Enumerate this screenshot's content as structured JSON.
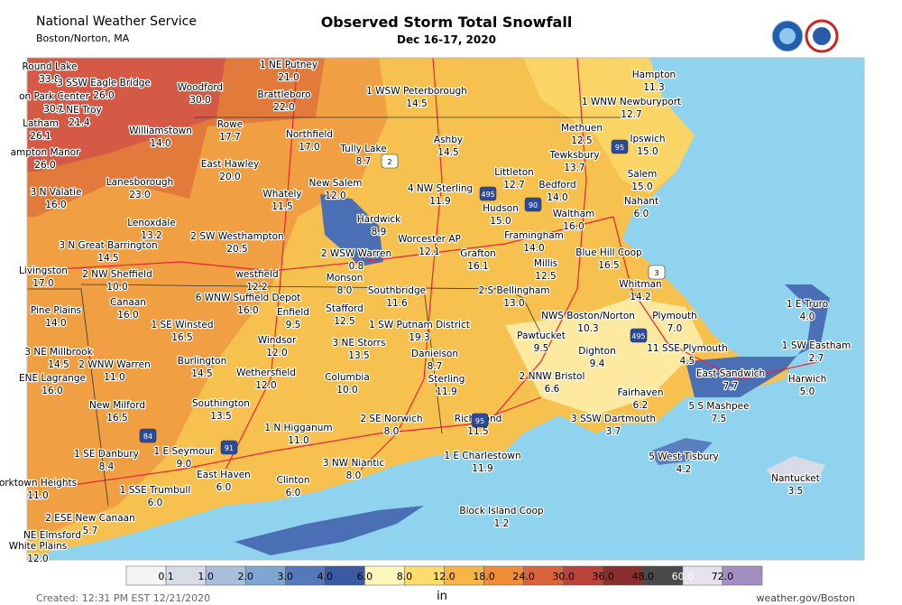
{
  "header": {
    "office": "National Weather Service",
    "location": "Boston/Norton, MA",
    "title": "Observed Storm Total Snowfall",
    "subtitle": "Dec 16-17, 2020"
  },
  "stations": [
    {
      "name": "Round Lake",
      "value": "33.8"
    },
    {
      "name": "3 SSW Eagle Bridge",
      "value": "26.0"
    },
    {
      "name": "on Park Center",
      "value": "30.1"
    },
    {
      "name": "7 NE Troy",
      "value": "21.4"
    },
    {
      "name": "Latham",
      "value": "26.1"
    },
    {
      "name": "ampton Manor",
      "value": "26.0"
    },
    {
      "name": "Woodford",
      "value": "30.0"
    },
    {
      "name": "1 NE Putney",
      "value": "21.0"
    },
    {
      "name": "Brattleboro",
      "value": "22.0"
    },
    {
      "name": "1 WSW Peterborough",
      "value": "14.5"
    },
    {
      "name": "Hampton",
      "value": "11.3"
    },
    {
      "name": "1 WNW Newburyport",
      "value": "12.7"
    },
    {
      "name": "Williamstown",
      "value": "14.0"
    },
    {
      "name": "Rowe",
      "value": "17.7"
    },
    {
      "name": "Northfield",
      "value": "17.0"
    },
    {
      "name": "Tully Lake",
      "value": "8.7"
    },
    {
      "name": "Ashby",
      "value": "14.5"
    },
    {
      "name": "Methuen",
      "value": "12.5"
    },
    {
      "name": "Ipswich",
      "value": "15.0"
    },
    {
      "name": "Tewksbury",
      "value": "13.7"
    },
    {
      "name": "East Hawley",
      "value": "20.0"
    },
    {
      "name": "Littleton",
      "value": "12.7"
    },
    {
      "name": "Salem",
      "value": "15.0"
    },
    {
      "name": "3 N Valatie",
      "value": "16.0"
    },
    {
      "name": "Lanesborough",
      "value": "23.0"
    },
    {
      "name": "New Salem",
      "value": "12.0"
    },
    {
      "name": "4 NW Sterling",
      "value": "11.9"
    },
    {
      "name": "Bedford",
      "value": "14.0"
    },
    {
      "name": "Whately",
      "value": "11.5"
    },
    {
      "name": "Hardwick",
      "value": "8.9"
    },
    {
      "name": "Hudson",
      "value": "15.0"
    },
    {
      "name": "Nahant",
      "value": "6.0"
    },
    {
      "name": "Waltham",
      "value": "16.0"
    },
    {
      "name": "Lenoxdale",
      "value": "13.2"
    },
    {
      "name": "2 SW Westhampton",
      "value": "20.5"
    },
    {
      "name": "Worcester AP",
      "value": "12.1"
    },
    {
      "name": "Framingham",
      "value": "14.0"
    },
    {
      "name": "3 N Great Barrington",
      "value": "14.5"
    },
    {
      "name": "2 WSW Warren",
      "value": "0.8"
    },
    {
      "name": "Grafton",
      "value": "16.1"
    },
    {
      "name": "Blue Hill Coop",
      "value": "16.5"
    },
    {
      "name": "Livingston",
      "value": "17.0"
    },
    {
      "name": "2 NW Sheffield",
      "value": "10.0"
    },
    {
      "name": "westfield",
      "value": "12.2"
    },
    {
      "name": "Millis",
      "value": "12.5"
    },
    {
      "name": "Monson",
      "value": "8.0"
    },
    {
      "name": "Southbridge",
      "value": "11.6"
    },
    {
      "name": "2 S Bellingham",
      "value": "13.0"
    },
    {
      "name": "Whitman",
      "value": "14.2"
    },
    {
      "name": "6 WNW Suffield Depot",
      "value": "16.0"
    },
    {
      "name": "Canaan",
      "value": "16.0"
    },
    {
      "name": "Pine Plains",
      "value": "14.0"
    },
    {
      "name": "Stafford",
      "value": "12.5"
    },
    {
      "name": "NWS Boston/Norton",
      "value": "10.3"
    },
    {
      "name": "Plymouth",
      "value": "7.0"
    },
    {
      "name": "1 E Truro",
      "value": "4.0"
    },
    {
      "name": "1 SE Winsted",
      "value": "16.5"
    },
    {
      "name": "Enfield",
      "value": "9.5"
    },
    {
      "name": "1 SW Putnam District",
      "value": "19.3"
    },
    {
      "name": "Pawtucket",
      "value": "9.5"
    },
    {
      "name": "Windsor",
      "value": "12.0"
    },
    {
      "name": "3 NE Storrs",
      "value": "13.5"
    },
    {
      "name": "Dighton",
      "value": "9.4"
    },
    {
      "name": "11 SSE Plymouth",
      "value": "4.5"
    },
    {
      "name": "1 SW Eastham",
      "value": "2.7"
    },
    {
      "name": "3 NE Millbrook",
      "value": "14.5"
    },
    {
      "name": "Danielson",
      "value": "8.7"
    },
    {
      "name": "Burlington",
      "value": "14.5"
    },
    {
      "name": "2 WNW Warren",
      "value": "11.0"
    },
    {
      "name": "East Sandwich",
      "value": "7.7"
    },
    {
      "name": "Wethersfield",
      "value": "12.0"
    },
    {
      "name": "Columbia",
      "value": "10.0"
    },
    {
      "name": "Sterling",
      "value": "11.9"
    },
    {
      "name": "2 NNW Bristol",
      "value": "6.6"
    },
    {
      "name": "Harwich",
      "value": "5.0"
    },
    {
      "name": "ENE Lagrange",
      "value": "16.0"
    },
    {
      "name": "Fairhaven",
      "value": "6.2"
    },
    {
      "name": "Southington",
      "value": "13.5"
    },
    {
      "name": "New Milford",
      "value": "16.5"
    },
    {
      "name": "5 S Mashpee",
      "value": "7.5"
    },
    {
      "name": "2 SE Norwich",
      "value": "8.0"
    },
    {
      "name": "Richmond",
      "value": "11.5"
    },
    {
      "name": "3 SSW Dartmouth",
      "value": "3.7"
    },
    {
      "name": "1 N Higganum",
      "value": "11.0"
    },
    {
      "name": "1 SE Danbury",
      "value": "8.4"
    },
    {
      "name": "1 E Seymour",
      "value": "9.0"
    },
    {
      "name": "1 E Charlestown",
      "value": "11.9"
    },
    {
      "name": "5 West Tisbury",
      "value": "4.2"
    },
    {
      "name": "3 NW Niantic",
      "value": "8.0"
    },
    {
      "name": "Nantucket",
      "value": "3.5"
    },
    {
      "name": "East Haven",
      "value": "6.0"
    },
    {
      "name": "Clinton",
      "value": "6.0"
    },
    {
      "name": "orktown Heights",
      "value": "11.0"
    },
    {
      "name": "1 SSE Trumbull",
      "value": "6.0"
    },
    {
      "name": "Block Island Coop",
      "value": "1.2"
    },
    {
      "name": "2 ESE New Canaan",
      "value": "5.7"
    },
    {
      "name": "NE Elmsford"
    },
    {
      "name": "White Plains",
      "value": "12.0"
    }
  ],
  "shields": [
    "2",
    "495",
    "95",
    "90",
    "3",
    "84",
    "91",
    "495",
    "95"
  ],
  "legend": {
    "labels": [
      "0.1",
      "1.0",
      "2.0",
      "3.0",
      "4.0",
      "6.0",
      "8.0",
      "12.0",
      "18.0",
      "24.0",
      "30.0",
      "36.0",
      "48.0",
      "60.0",
      "72.0"
    ],
    "unit": "in"
  },
  "footer": {
    "created": "Created: 12:31 PM EST 12/21/2020",
    "site": "weather.gov/Boston"
  }
}
